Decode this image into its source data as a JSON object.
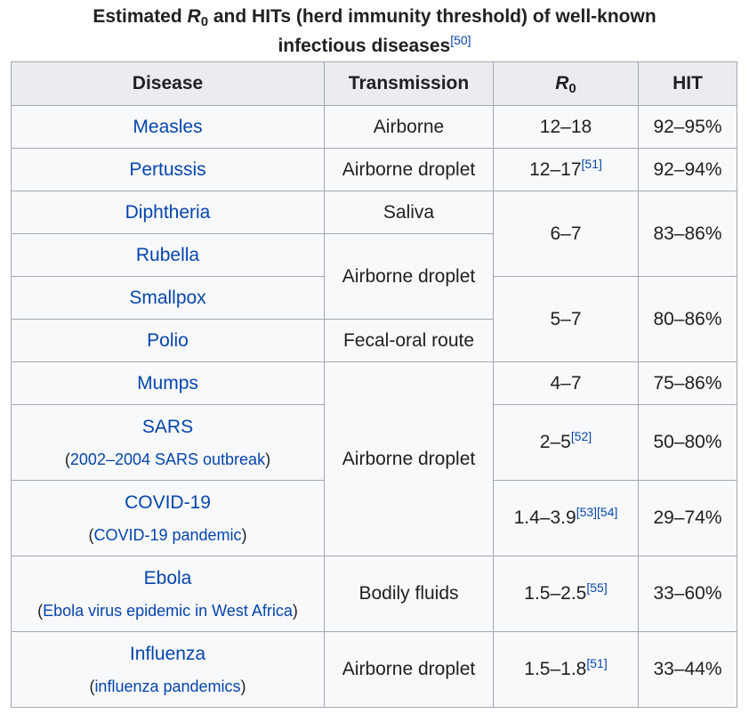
{
  "caption": {
    "prefix": "Estimated ",
    "r_letter": "R",
    "r_sub": "0",
    "suffix_line1": " and HITs (herd immunity threshold) of well-known",
    "line2": "infectious diseases",
    "ref": "[50]"
  },
  "headers": {
    "disease": "Disease",
    "transmission": "Transmission",
    "r_letter": "R",
    "r_sub": "0",
    "hit": "HIT"
  },
  "rows": [
    {
      "disease": "Measles",
      "transmission": "Airborne",
      "r0": "12–18",
      "r0_ref": "",
      "hit": "92–95%"
    },
    {
      "disease": "Pertussis",
      "transmission": "Airborne droplet",
      "r0": "12–17",
      "r0_ref": "[51]",
      "hit": "92–94%"
    },
    {
      "disease": "Diphtheria",
      "transmission": "Saliva",
      "r0": "6–7",
      "r0_ref": "",
      "hit": "83–86%"
    },
    {
      "disease": "Rubella",
      "transmission": "Airborne droplet"
    },
    {
      "disease": "Smallpox",
      "r0": "5–7",
      "r0_ref": "",
      "hit": "80–86%"
    },
    {
      "disease": "Polio",
      "transmission": "Fecal-oral route"
    },
    {
      "disease": "Mumps",
      "transmission": "Airborne droplet",
      "r0": "4–7",
      "r0_ref": "",
      "hit": "75–86%"
    },
    {
      "disease": "SARS",
      "note_link": "2002–2004 SARS outbreak",
      "r0": "2–5",
      "r0_ref": "[52]",
      "hit": "50–80%"
    },
    {
      "disease": "COVID-19",
      "note_link": "COVID-19 pandemic",
      "r0": "1.4–3.9",
      "r0_ref": "[53][54]",
      "hit": "29–74%"
    },
    {
      "disease": "Ebola",
      "note_link": "Ebola virus epidemic in West Africa",
      "transmission": "Bodily fluids",
      "r0": "1.5–2.5",
      "r0_ref": "[55]",
      "hit": "33–60%"
    },
    {
      "disease": "Influenza",
      "note_link": "influenza pandemics",
      "transmission": "Airborne droplet",
      "r0": "1.5–1.8",
      "r0_ref": "[51]",
      "hit": "33–44%"
    }
  ],
  "paren_open": "(",
  "paren_close": ")"
}
